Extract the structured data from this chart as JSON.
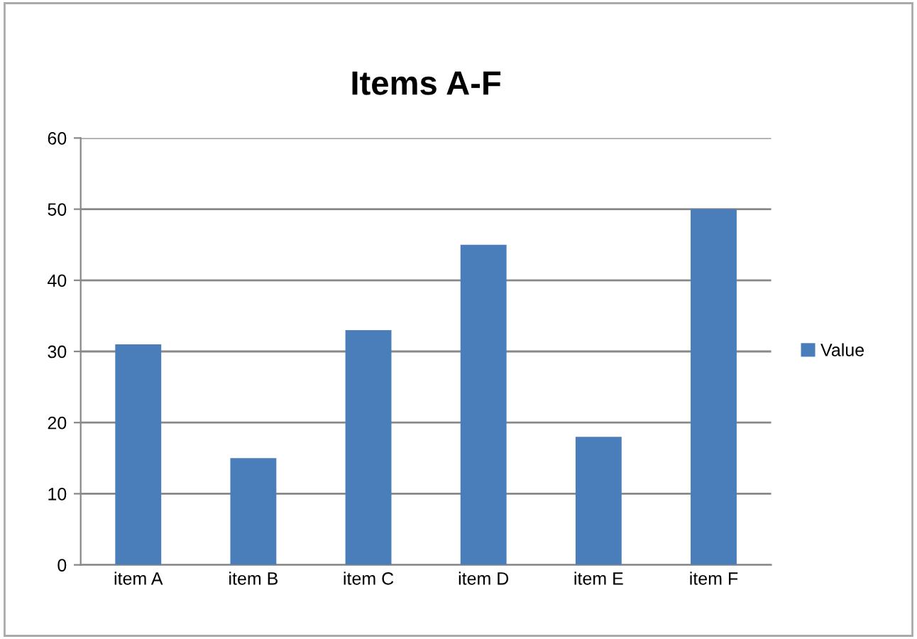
{
  "chart_data": {
    "type": "bar",
    "title": "Items A-F",
    "categories": [
      "item A",
      "item B",
      "item C",
      "item D",
      "item E",
      "item F"
    ],
    "series": [
      {
        "name": "Value",
        "color": "#4a7ebb",
        "values": [
          31,
          15,
          33,
          45,
          18,
          50
        ]
      }
    ],
    "ylim": [
      0,
      60
    ],
    "yticks": [
      0,
      10,
      20,
      30,
      40,
      50,
      60
    ],
    "grid": "y",
    "legend": "right"
  }
}
